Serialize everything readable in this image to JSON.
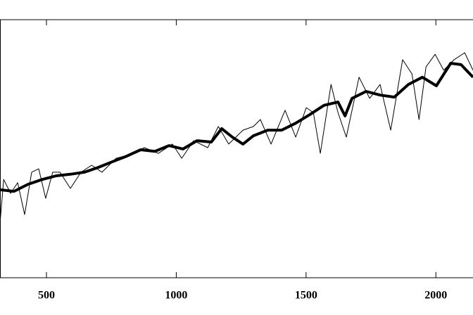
{
  "chart_data": {
    "type": "line",
    "xlim": [
      321,
      2143
    ],
    "ylim": [
      0,
      100
    ],
    "xticks": [
      500,
      1000,
      1500,
      2000
    ],
    "series": [
      {
        "color": "#000000",
        "width": 1,
        "x": [
          321,
          335,
          362,
          389,
          416,
          443,
          470,
          497,
          524,
          552,
          592,
          633,
          674,
          714,
          768,
          823,
          877,
          931,
          985,
          1021,
          1067,
          1121,
          1162,
          1202,
          1257,
          1297,
          1324,
          1365,
          1419,
          1460,
          1501,
          1528,
          1555,
          1596,
          1623,
          1655,
          1704,
          1745,
          1785,
          1826,
          1872,
          1908,
          1935,
          1962,
          1997,
          2030,
          2070,
          2111,
          2143
        ],
        "values": [
          21.0,
          38.1,
          32.7,
          36.8,
          24.5,
          40.9,
          42.2,
          30.8,
          40.9,
          40.9,
          34.6,
          40.9,
          43.6,
          40.9,
          46.3,
          47.7,
          50.4,
          48.2,
          51.8,
          46.3,
          53.1,
          50.4,
          58.6,
          51.8,
          57.2,
          58.6,
          61.3,
          51.8,
          64.9,
          54.5,
          65.9,
          64.0,
          48.2,
          74.9,
          64.0,
          54.5,
          77.7,
          69.5,
          74.9,
          57.2,
          84.5,
          79.0,
          61.3,
          81.7,
          86.6,
          80.4,
          84.5,
          87.2,
          80.4
        ]
      },
      {
        "color": "#000000",
        "width": 4,
        "x": [
          321,
          375,
          429,
          484,
          538,
          592,
          646,
          701,
          755,
          809,
          863,
          918,
          972,
          1026,
          1080,
          1135,
          1175,
          1216,
          1257,
          1297,
          1352,
          1406,
          1460,
          1514,
          1569,
          1623,
          1650,
          1677,
          1731,
          1785,
          1840,
          1894,
          1948,
          2002,
          2057,
          2097,
          2143
        ],
        "values": [
          34.1,
          33.5,
          36.2,
          38.1,
          39.5,
          40.1,
          40.9,
          42.8,
          45.0,
          47.1,
          49.6,
          49.0,
          51.2,
          49.9,
          53.1,
          52.6,
          57.8,
          54.5,
          51.8,
          55.0,
          57.2,
          57.2,
          59.9,
          63.2,
          66.8,
          68.1,
          62.7,
          69.5,
          72.2,
          70.8,
          70.0,
          74.9,
          77.7,
          74.4,
          83.1,
          82.6,
          77.7
        ]
      }
    ]
  }
}
